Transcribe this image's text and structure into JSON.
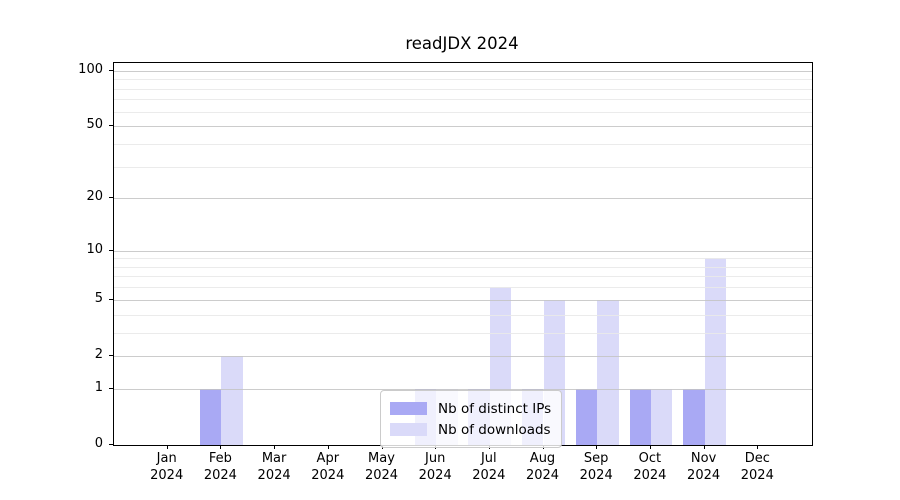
{
  "chart_data": {
    "type": "bar",
    "title": "readJDX 2024",
    "xlabel": "",
    "ylabel": "",
    "categories": [
      "Jan",
      "Feb",
      "Mar",
      "Apr",
      "May",
      "Jun",
      "Jul",
      "Aug",
      "Sep",
      "Oct",
      "Nov",
      "Dec"
    ],
    "x_tick_year": "2024",
    "series": [
      {
        "name": "Nb of distinct IPs",
        "color": "#a9a9f4",
        "values": [
          0,
          1,
          0,
          0,
          0,
          1,
          1,
          1,
          1,
          1,
          1,
          0
        ]
      },
      {
        "name": "Nb of downloads",
        "color": "#dadaf9",
        "values": [
          0,
          2,
          0,
          0,
          0,
          1,
          6,
          5,
          5,
          1,
          9,
          0
        ]
      }
    ],
    "y_axis": {
      "scale": "log1p",
      "ticks": [
        0,
        1,
        2,
        5,
        10,
        20,
        50,
        100
      ],
      "minor_ticks": [
        3,
        4,
        6,
        7,
        8,
        9,
        30,
        40,
        60,
        70,
        80,
        90
      ],
      "ylim": [
        0,
        110
      ]
    },
    "grid": true,
    "legend": {
      "position": "lower center-left inside plot",
      "entries": [
        "Nb of distinct IPs",
        "Nb of downloads"
      ]
    }
  },
  "colors": {
    "major_grid": "#c3c3c3",
    "minor_grid": "#e9e9e9",
    "spine": "#000000",
    "legend_border": "#cbcbcb",
    "background": "#ffffff"
  }
}
